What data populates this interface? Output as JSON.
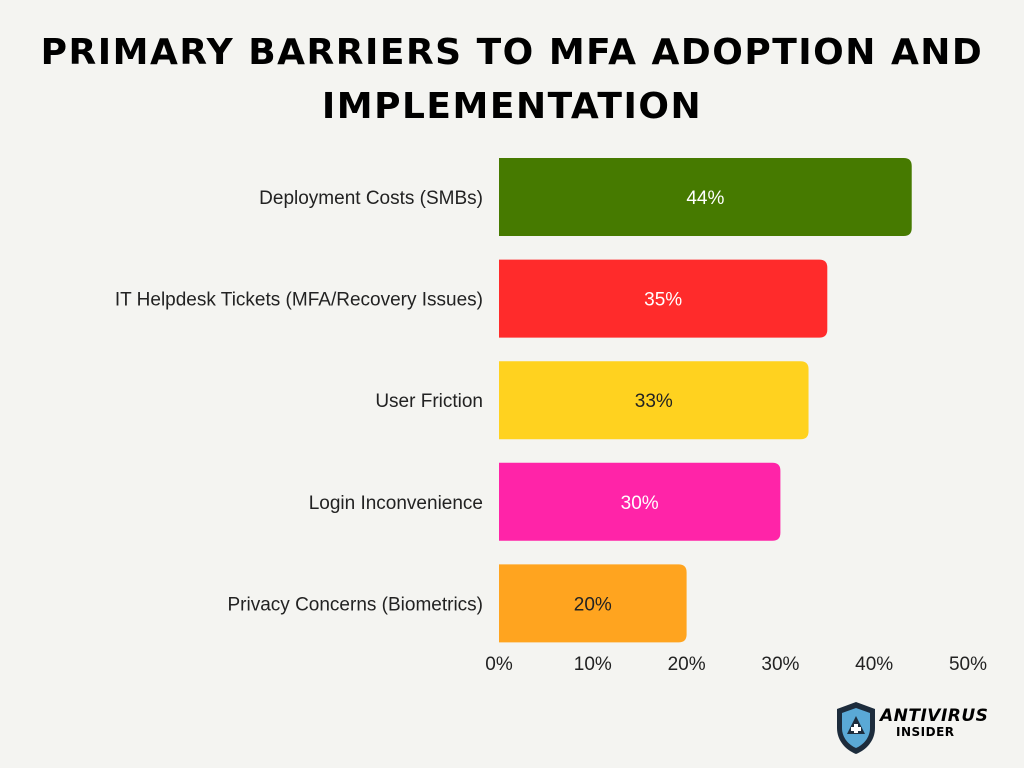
{
  "chart_data": {
    "type": "bar",
    "orientation": "horizontal",
    "title": "Primary Barriers to MFA Adoption and Implementation",
    "categories": [
      "Deployment Costs (SMBs)",
      "IT Helpdesk Tickets (MFA/Recovery Issues)",
      "User Friction",
      "Login Inconvenience",
      "Privacy Concerns (Biometrics)"
    ],
    "values": [
      44,
      35,
      33,
      30,
      20
    ],
    "data_labels": [
      "44%",
      "35%",
      "33%",
      "30%",
      "20%"
    ],
    "colors": [
      "#467a00",
      "#ff2b2b",
      "#ffd21f",
      "#ff24a8",
      "#ffa41f"
    ],
    "label_colors": [
      "#ffffff",
      "#ffffff",
      "#222222",
      "#ffffff",
      "#222222"
    ],
    "xlim": [
      0,
      50
    ],
    "xticks": [
      "0%",
      "10%",
      "20%",
      "30%",
      "40%",
      "50%"
    ],
    "grid": false,
    "legend": "none"
  },
  "logo": {
    "line1": "ANTIVIRUS",
    "line2": "INSIDER",
    "colors": {
      "shield": "#1d2c3c",
      "accent": "#5aa9d6"
    }
  }
}
